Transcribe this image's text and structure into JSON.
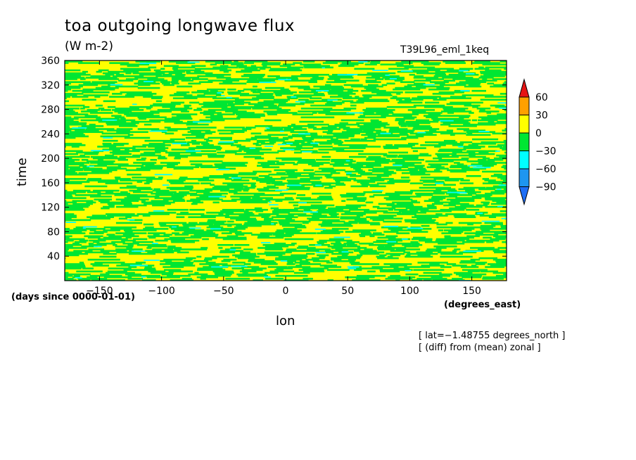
{
  "chart_data": {
    "type": "heatmap",
    "title": "toa outgoing longwave flux",
    "units": "(W m-2)",
    "run_name": "T39L96_eml_1keq",
    "xlabel": "lon",
    "ylabel": "time",
    "x_unit": "(degrees_east)",
    "y_unit": "(days since 0000-01-01)",
    "xlim": [
      -178,
      178
    ],
    "ylim": [
      0,
      360
    ],
    "x_ticks": [
      -150,
      -100,
      -50,
      0,
      50,
      100,
      150
    ],
    "x_tick_labels": [
      "−150",
      "−100",
      "−50",
      "0",
      "50",
      "100",
      "150"
    ],
    "y_ticks": [
      40,
      80,
      120,
      160,
      200,
      240,
      280,
      320,
      360
    ],
    "y_tick_labels": [
      "40",
      "80",
      "120",
      "160",
      "200",
      "240",
      "280",
      "320",
      "360"
    ],
    "notes": [
      "[ lat=−1.48755 degrees_north ]",
      "[ (diff) from (mean) zonal ]"
    ],
    "colorbar": {
      "levels": [
        -90,
        -60,
        -30,
        0,
        30,
        60
      ],
      "level_labels": [
        "−90",
        "−60",
        "−30",
        "0",
        "30",
        "60"
      ],
      "colors": [
        "#1e6ef5",
        "#1e96f0",
        "#00ffff",
        "#00e632",
        "#ffff00",
        "#ffa000",
        "#e61414"
      ],
      "extend": "both"
    },
    "field_description": "mostly values between -30 and 30 (green and yellow), scattered cyan patches between -60 and -30"
  }
}
